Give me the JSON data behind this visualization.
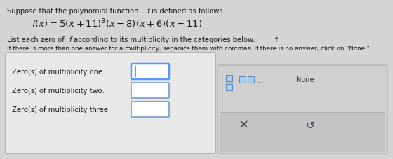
{
  "bg_color": "#d4d4d4",
  "title_line1": "Suppose that the polynomial function ",
  "title_line1_italic": "f",
  "title_line1_rest": " is defined as follows.",
  "line3_pre": "List each zero of ",
  "line3_italic": "f",
  "line3_rest": " according to its multiplicity in the categories below.",
  "line4": "If there is more than one answer for a multiplicity, separate them with commas. If there is no answer, click on \"None.\"",
  "row_labels": [
    "Zero(s) of multiplicity one:",
    "Zero(s) of multiplicity two:",
    "Zero(s) of multiplicity three:"
  ],
  "left_box_bg": "#e8e8e8",
  "left_box_border": "#999999",
  "right_box_bg": "#d0d0d0",
  "right_box_border": "#aaaaaa",
  "input_box_border_active": "#5599ff",
  "input_box_border_inactive": "#7799cc",
  "none_text": "None",
  "x_symbol": "×",
  "undo_symbol": "↺",
  "text_color": "#1a1a1a",
  "formula_color": "#1a1a1a"
}
